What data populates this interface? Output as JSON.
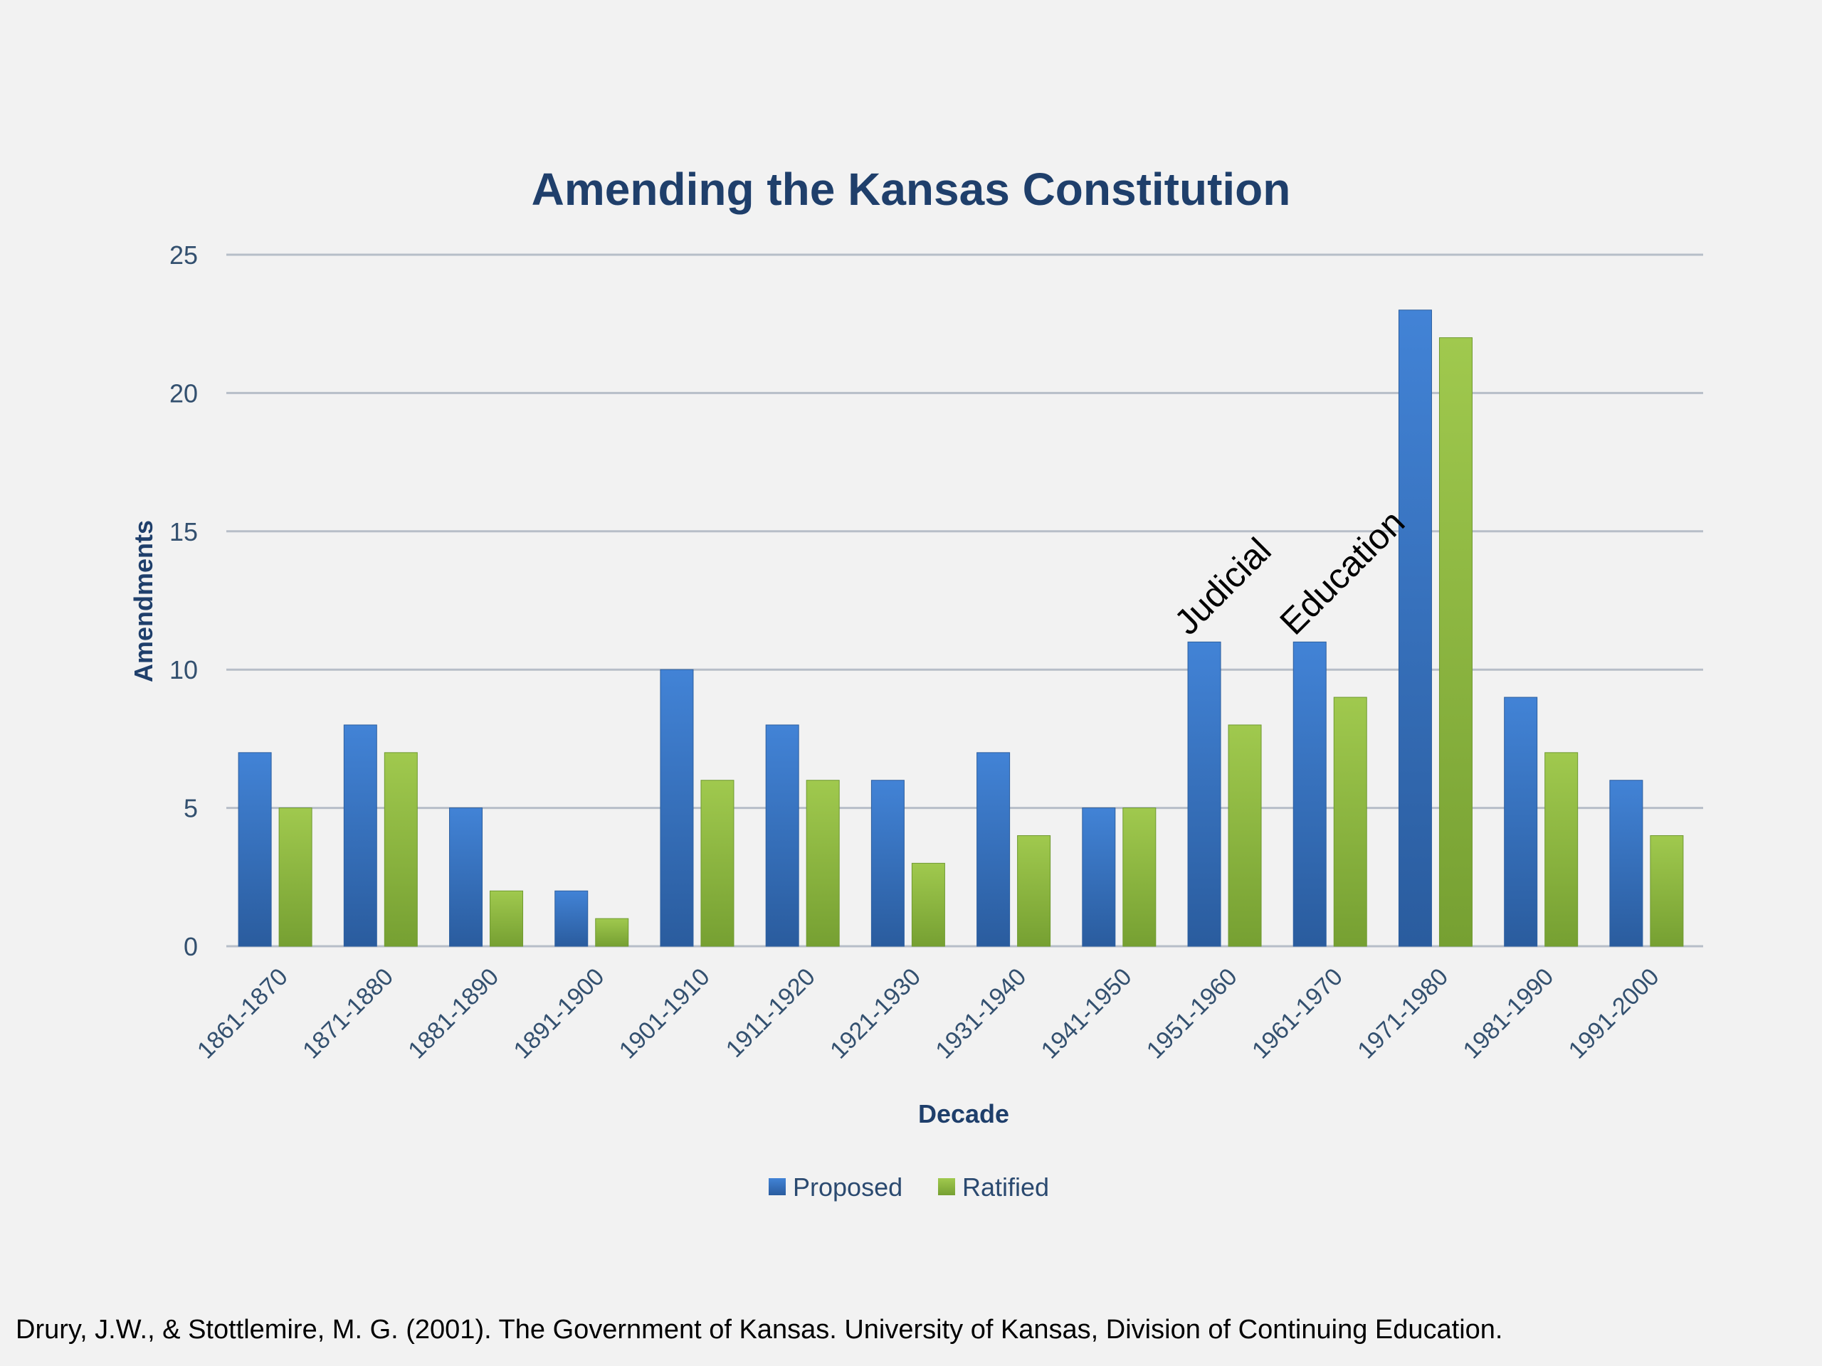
{
  "chart_data": {
    "type": "bar",
    "title": "Amending the Kansas Constitution",
    "xlabel": "Decade",
    "ylabel": "Amendments",
    "ylim": [
      0,
      25
    ],
    "yticks": [
      0,
      5,
      10,
      15,
      20,
      25
    ],
    "grid": true,
    "legend_position": "bottom",
    "categories": [
      "1861-1870",
      "1871-1880",
      "1881-1890",
      "1891-1900",
      "1901-1910",
      "1911-1920",
      "1921-1930",
      "1931-1940",
      "1941-1950",
      "1951-1960",
      "1961-1970",
      "1971-1980",
      "1981-1990",
      "1991-2000"
    ],
    "series": [
      {
        "name": "Proposed",
        "color": "#3a74c4",
        "values": [
          7,
          8,
          5,
          2,
          10,
          8,
          6,
          7,
          5,
          11,
          11,
          23,
          9,
          6
        ]
      },
      {
        "name": "Ratified",
        "color": "#8db83f",
        "values": [
          5,
          7,
          2,
          1,
          6,
          6,
          3,
          4,
          5,
          8,
          9,
          22,
          7,
          4
        ]
      }
    ],
    "annotations": [
      {
        "text": "Judicial",
        "category": "1951-1960"
      },
      {
        "text": "Education",
        "category": "1961-1970"
      }
    ]
  },
  "citation": "Drury, J.W., & Stottlemire, M. G. (2001). The Government of Kansas. University of Kansas, Division of Continuing Education."
}
